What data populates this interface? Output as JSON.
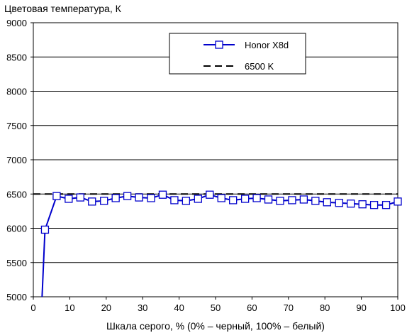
{
  "chart_data": {
    "type": "line",
    "title": "",
    "ylabel": "Цветовая температура, К",
    "xlabel": "Шкала серого, % (0% – черный, 100% – белый)",
    "xlim": [
      0,
      100
    ],
    "ylim": [
      5000,
      9000
    ],
    "xticks": [
      0,
      10,
      20,
      30,
      40,
      50,
      60,
      70,
      80,
      90,
      100
    ],
    "yticks": [
      5000,
      5500,
      6000,
      6500,
      7000,
      7500,
      8000,
      8500,
      9000
    ],
    "grid": "horizontal",
    "legend_position": "top-right",
    "series": [
      {
        "name": "Honor X8d",
        "color": "#0000cc",
        "marker": "square",
        "x": [
          3.2,
          6.4,
          9.7,
          12.9,
          16.1,
          19.4,
          22.6,
          25.8,
          29.0,
          32.3,
          35.5,
          38.7,
          41.9,
          45.2,
          48.4,
          51.6,
          54.8,
          58.1,
          61.3,
          64.5,
          67.7,
          71.0,
          74.2,
          77.4,
          80.6,
          83.9,
          87.1,
          90.3,
          93.5,
          96.8,
          100
        ],
        "y": [
          5980,
          6470,
          6430,
          6450,
          6390,
          6400,
          6440,
          6470,
          6450,
          6440,
          6490,
          6410,
          6400,
          6430,
          6490,
          6440,
          6410,
          6430,
          6440,
          6420,
          6400,
          6410,
          6420,
          6400,
          6380,
          6370,
          6360,
          6350,
          6340,
          6340,
          6390
        ],
        "line_start": [
          2.4,
          5000
        ]
      },
      {
        "name": "6500 K",
        "color": "#000000",
        "style": "dashed",
        "x": [
          0,
          100
        ],
        "y": [
          6500,
          6500
        ]
      }
    ]
  }
}
